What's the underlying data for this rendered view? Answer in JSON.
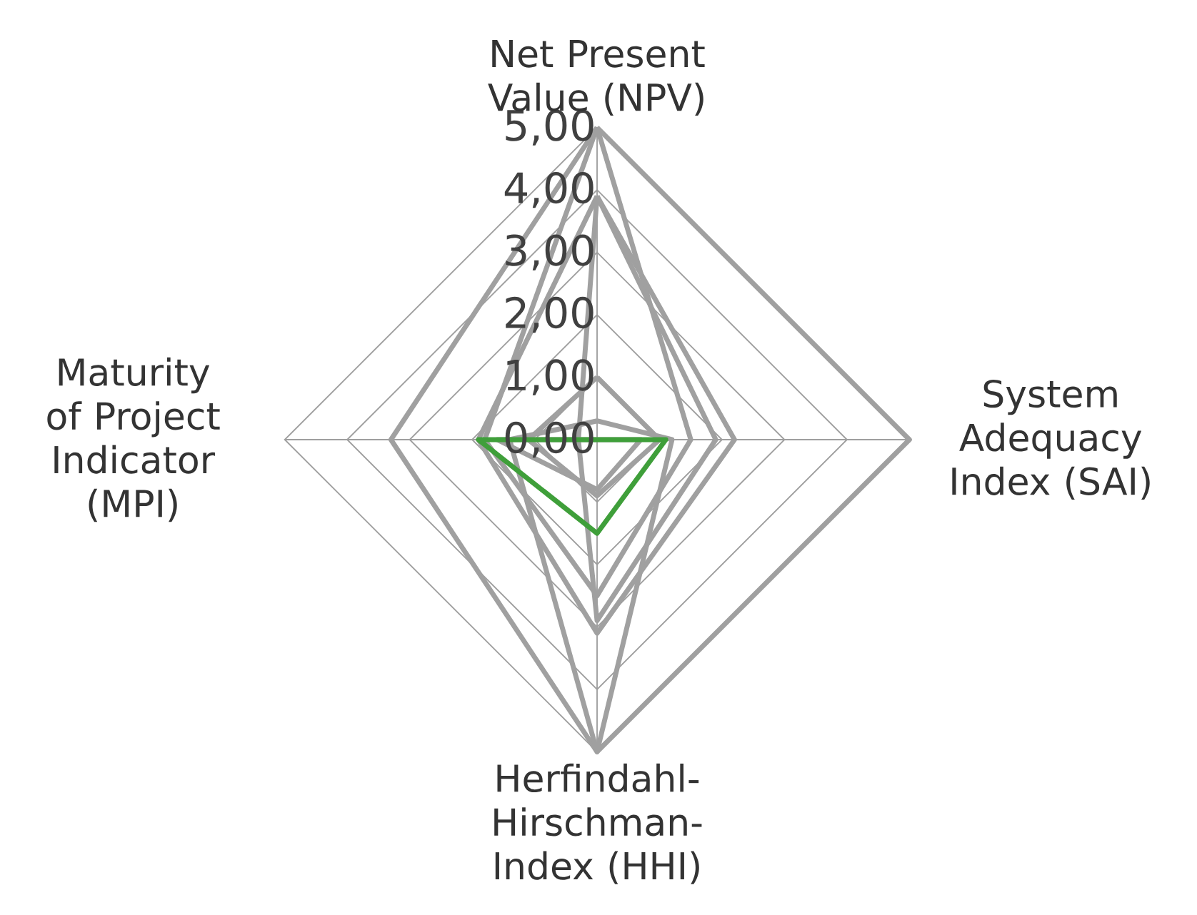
{
  "chart_data": {
    "type": "radar",
    "categories": [
      "Net Present Value (NPV)",
      "System Adequacy Index (SAI)",
      "Herfindahl-Hirschman-Index (HHI)",
      "Maturity of Project Indicator (MPI)"
    ],
    "ylim": [
      0,
      5
    ],
    "yticks": [
      {
        "value": 0,
        "label": "0,00"
      },
      {
        "value": 1,
        "label": "1,00"
      },
      {
        "value": 2,
        "label": "2,00"
      },
      {
        "value": 3,
        "label": "3,00"
      },
      {
        "value": 4,
        "label": "4,00"
      },
      {
        "value": 5,
        "label": "5,00"
      }
    ],
    "grid": true,
    "series": [
      {
        "color": "#a0a0a0",
        "values": [
          5.0,
          5.0,
          5.0,
          3.3
        ]
      },
      {
        "color": "#a0a0a0",
        "values": [
          3.9,
          2.2,
          3.1,
          1.9
        ]
      },
      {
        "color": "#a0a0a0",
        "values": [
          1.0,
          1.0,
          0.9,
          1.1
        ]
      },
      {
        "color": "#a0a0a0",
        "values": [
          5.0,
          1.5,
          2.5,
          1.8
        ]
      },
      {
        "color": "#a0a0a0",
        "values": [
          3.9,
          1.9,
          2.9,
          0.3
        ]
      },
      {
        "color": "#a0a0a0",
        "values": [
          0.3,
          1.2,
          5.0,
          1.4
        ]
      },
      {
        "color": "#a0a0a0",
        "values": [
          0.0,
          0.7,
          0.8,
          1.6
        ]
      },
      {
        "color": "#3f9f3a",
        "values": [
          0.0,
          1.1,
          1.5,
          1.9
        ]
      }
    ]
  }
}
